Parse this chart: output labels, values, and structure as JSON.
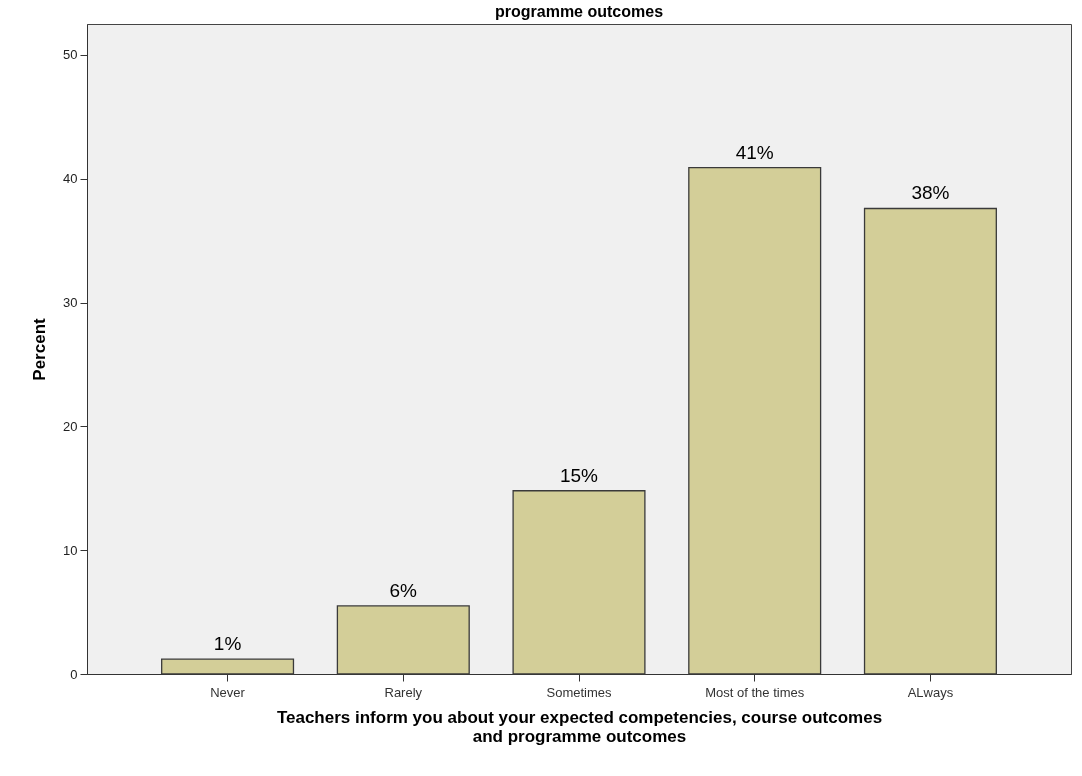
{
  "chart_data": {
    "type": "bar",
    "title": "programme outcomes",
    "xlabel": "Teachers inform you about your expected competencies, course outcomes and programme outcomes",
    "ylabel": "Percent",
    "categories": [
      "Never",
      "Rarely",
      "Sometimes",
      "Most of the times",
      "ALways"
    ],
    "values": [
      1.2,
      5.5,
      14.8,
      40.9,
      37.6
    ],
    "color": "#d3ce98",
    "value_labels": [
      "1%",
      "6%",
      "15%",
      "41%",
      "38%"
    ],
    "ylim": [
      0,
      52.5
    ],
    "yticks": [
      0,
      10,
      20,
      30,
      40,
      50
    ],
    "grid": false
  }
}
